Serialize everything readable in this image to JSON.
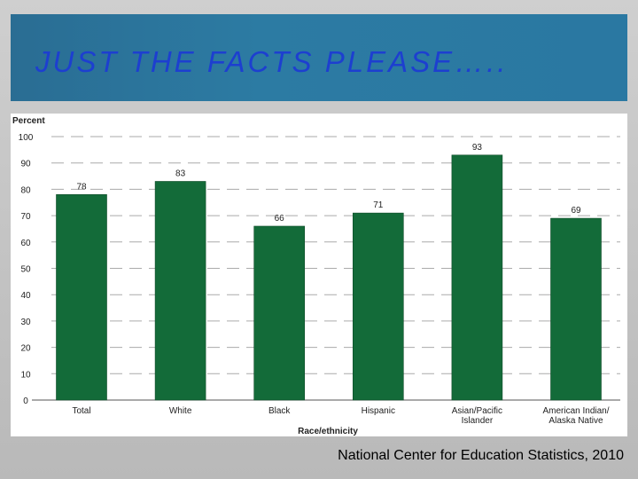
{
  "slide": {
    "title": "JUST THE FACTS PLEASE…..",
    "source": "National Center for Education Statistics, 2010"
  },
  "colors": {
    "bar": "#136b39",
    "grid": "#aaaaaa",
    "title_text": "#1d3fd0",
    "title_band": "#2a76a0"
  },
  "chart_data": {
    "type": "bar",
    "ylabel": "Percent",
    "xlabel": "Race/ethnicity",
    "ylim": [
      0,
      100
    ],
    "yticks": [
      0,
      10,
      20,
      30,
      40,
      50,
      60,
      70,
      80,
      90,
      100
    ],
    "grid": true,
    "categories": [
      [
        "Total"
      ],
      [
        "White"
      ],
      [
        "Black"
      ],
      [
        "Hispanic"
      ],
      [
        "Asian/Pacific",
        "Islander"
      ],
      [
        "American Indian/",
        "Alaska Native"
      ]
    ],
    "values": [
      78,
      83,
      66,
      71,
      93,
      69
    ]
  }
}
